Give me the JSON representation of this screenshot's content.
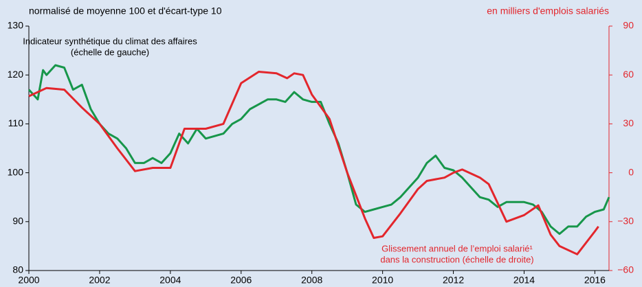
{
  "chart_data": {
    "type": "line",
    "ylabel": "normalisé de moyenne 100 et d'écart-type 10",
    "y2label": "en milliers d'emplois salariés",
    "annotations": [
      "Indicateur synthétique du climat des affaires",
      "(échelle de gauche)",
      "Glissement annuel de l’emploi salarié¹",
      "dans la construction (échelle de droite)"
    ],
    "xlim": [
      2000,
      2016.4
    ],
    "xticks": [
      2000,
      2002,
      2004,
      2006,
      2008,
      2010,
      2012,
      2014,
      2016
    ],
    "ylim": [
      80,
      130
    ],
    "yticks": [
      80,
      90,
      100,
      110,
      120,
      130
    ],
    "y2lim": [
      -60,
      90
    ],
    "y2ticks": [
      {
        "value": -60,
        "label": "−60"
      },
      {
        "value": -30,
        "label": "−30"
      },
      0,
      30,
      60,
      90
    ],
    "grid": false,
    "series": [
      {
        "name": "Indicateur synthétique du climat des affaires",
        "color": "#17964a",
        "x": [
          2000,
          2000.25,
          2000.4,
          2000.5,
          2000.75,
          2001,
          2001.25,
          2001.5,
          2001.75,
          2002,
          2002.25,
          2002.5,
          2002.75,
          2003,
          2003.25,
          2003.5,
          2003.75,
          2004,
          2004.25,
          2004.5,
          2004.75,
          2005,
          2005.25,
          2005.5,
          2005.75,
          2006,
          2006.25,
          2006.5,
          2006.75,
          2007,
          2007.25,
          2007.5,
          2007.75,
          2008,
          2008.25,
          2008.5,
          2008.75,
          2009,
          2009.25,
          2009.5,
          2009.75,
          2010,
          2010.25,
          2010.5,
          2010.75,
          2011,
          2011.25,
          2011.5,
          2011.75,
          2012,
          2012.25,
          2012.5,
          2012.75,
          2013,
          2013.25,
          2013.5,
          2013.75,
          2014,
          2014.25,
          2014.5,
          2014.75,
          2015,
          2015.25,
          2015.5,
          2015.75,
          2016,
          2016.25,
          2016.4
        ],
        "values": [
          117,
          115,
          121,
          120,
          122,
          121.5,
          117,
          118,
          113,
          110,
          108,
          107,
          105,
          102,
          102,
          103,
          102,
          104,
          108,
          106,
          109,
          107,
          107.5,
          108,
          110,
          111,
          113,
          114,
          115,
          115,
          114.5,
          116.5,
          115,
          114.5,
          114.5,
          110,
          106,
          100,
          93.5,
          92,
          92.5,
          93,
          93.5,
          95,
          97,
          99,
          102,
          103.5,
          101,
          100.5,
          99,
          97,
          95,
          94.5,
          93,
          94,
          94,
          94,
          93.5,
          92,
          89,
          87.5,
          89,
          89,
          91,
          92,
          92.5,
          95
        ]
      },
      {
        "name": "Glissement annuel de l’emploi salarié dans la construction",
        "color": "#e3262c",
        "axis": "y2",
        "x": [
          2000,
          2000.5,
          2001,
          2001.5,
          2002,
          2002.5,
          2003,
          2003.5,
          2004,
          2004.4,
          2005,
          2005.5,
          2006,
          2006.5,
          2007,
          2007.3,
          2007.5,
          2007.75,
          2008,
          2008.5,
          2009,
          2009.5,
          2009.75,
          2010,
          2010.5,
          2011,
          2011.25,
          2011.75,
          2012,
          2012.25,
          2012.75,
          2013,
          2013.5,
          2014,
          2014.4,
          2014.75,
          2015,
          2015.5,
          2016,
          2016.1
        ],
        "values": [
          47,
          52,
          51,
          40,
          30,
          15,
          1,
          3,
          3,
          27,
          27,
          30,
          55,
          62,
          61,
          58,
          61,
          60,
          48,
          33,
          0,
          -28,
          -40,
          -39,
          -25,
          -10,
          -5,
          -3,
          0,
          2,
          -3,
          -7,
          -30,
          -26,
          -20,
          -38,
          -45,
          -50,
          -36,
          -33
        ]
      }
    ]
  }
}
